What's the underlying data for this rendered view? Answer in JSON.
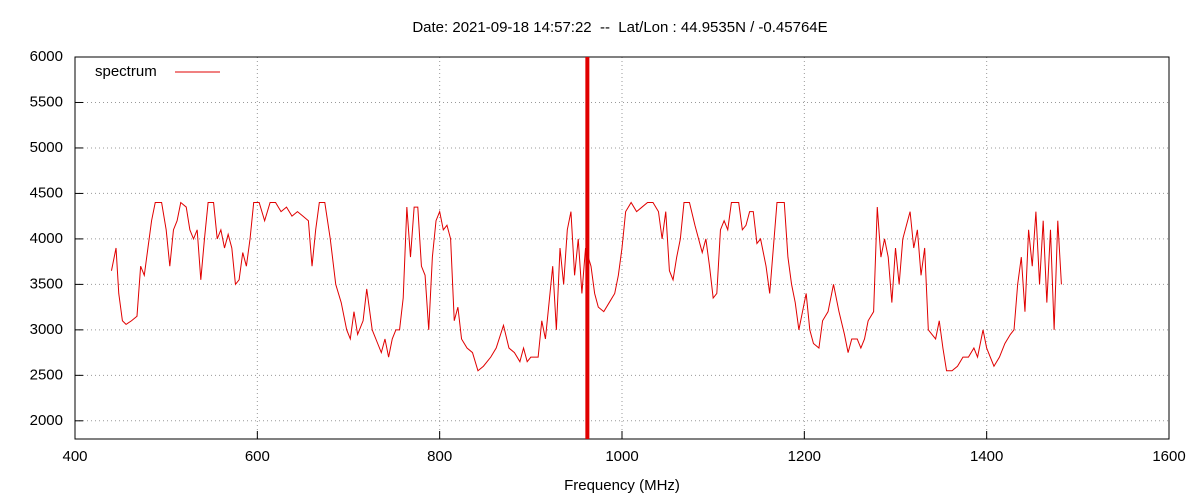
{
  "chart_data": {
    "type": "line",
    "title": "Date: 2021-09-18 14:57:22  --  Lat/Lon : 44.9535N / -0.45764E",
    "x_label": "Frequency (MHz)",
    "xlim": [
      400,
      1600
    ],
    "xticks": [
      400,
      600,
      800,
      1000,
      1200,
      1400,
      1600
    ],
    "ylim": [
      1800,
      6000
    ],
    "yticks": [
      2000,
      2500,
      3000,
      3500,
      4000,
      4500,
      5000,
      5500,
      6000
    ],
    "grid": true,
    "legend": "top-left",
    "marker_x": 962,
    "marker_color": "#e00000",
    "x": [
      440,
      445,
      448,
      452,
      456,
      462,
      468,
      472,
      476,
      480,
      484,
      488,
      495,
      500,
      504,
      508,
      512,
      516,
      522,
      526,
      530,
      534,
      538,
      542,
      546,
      552,
      556,
      560,
      564,
      568,
      572,
      576,
      580,
      584,
      588,
      592,
      596,
      602,
      608,
      614,
      620,
      626,
      632,
      638,
      644,
      650,
      656,
      660,
      664,
      668,
      674,
      680,
      686,
      692,
      698,
      702,
      706,
      710,
      716,
      720,
      726,
      732,
      736,
      740,
      744,
      748,
      752,
      756,
      760,
      764,
      768,
      772,
      776,
      780,
      784,
      788,
      792,
      796,
      800,
      804,
      808,
      812,
      816,
      820,
      824,
      830,
      836,
      842,
      848,
      852,
      856,
      862,
      870,
      876,
      882,
      888,
      892,
      896,
      900,
      904,
      908,
      912,
      916,
      920,
      924,
      928,
      932,
      936,
      940,
      944,
      948,
      952,
      956,
      960,
      966,
      970,
      974,
      980,
      986,
      992,
      996,
      1000,
      1004,
      1010,
      1016,
      1022,
      1028,
      1034,
      1040,
      1044,
      1048,
      1052,
      1056,
      1060,
      1064,
      1068,
      1074,
      1080,
      1084,
      1088,
      1092,
      1096,
      1100,
      1104,
      1108,
      1112,
      1116,
      1120,
      1128,
      1132,
      1136,
      1140,
      1144,
      1148,
      1152,
      1158,
      1162,
      1166,
      1170,
      1178,
      1182,
      1186,
      1190,
      1194,
      1198,
      1202,
      1206,
      1210,
      1216,
      1220,
      1226,
      1232,
      1238,
      1244,
      1248,
      1252,
      1258,
      1262,
      1266,
      1270,
      1276,
      1280,
      1284,
      1288,
      1292,
      1296,
      1300,
      1304,
      1308,
      1312,
      1316,
      1320,
      1324,
      1328,
      1332,
      1336,
      1340,
      1344,
      1348,
      1352,
      1356,
      1362,
      1368,
      1374,
      1380,
      1386,
      1390,
      1396,
      1400,
      1404,
      1408,
      1414,
      1420,
      1426,
      1430,
      1434,
      1438,
      1442,
      1446,
      1450,
      1454,
      1458,
      1462,
      1466,
      1470,
      1474,
      1478,
      1482
    ],
    "series": [
      {
        "name": "spectrum",
        "color": "#e00000",
        "values": [
          3650,
          3900,
          3400,
          3100,
          3060,
          3100,
          3150,
          3700,
          3600,
          3900,
          4200,
          4400,
          4400,
          4100,
          3700,
          4100,
          4200,
          4400,
          4350,
          4100,
          4000,
          4100,
          3550,
          4000,
          4400,
          4400,
          4000,
          4100,
          3900,
          4050,
          3900,
          3500,
          3550,
          3850,
          3700,
          4000,
          4400,
          4400,
          4200,
          4400,
          4400,
          4300,
          4350,
          4250,
          4300,
          4250,
          4200,
          3700,
          4100,
          4400,
          4400,
          4000,
          3500,
          3300,
          3000,
          2900,
          3200,
          2950,
          3100,
          3450,
          3000,
          2850,
          2750,
          2900,
          2700,
          2900,
          3000,
          3000,
          3350,
          4350,
          3800,
          4350,
          4350,
          3700,
          3600,
          3000,
          3800,
          4200,
          4300,
          4100,
          4150,
          4000,
          3100,
          3250,
          2900,
          2800,
          2750,
          2550,
          2600,
          2650,
          2700,
          2800,
          3050,
          2800,
          2750,
          2650,
          2800,
          2650,
          2700,
          2700,
          2700,
          3100,
          2900,
          3300,
          3700,
          3000,
          3900,
          3500,
          4100,
          4300,
          3600,
          4000,
          3400,
          3900,
          3700,
          3400,
          3250,
          3200,
          3300,
          3400,
          3600,
          3900,
          4300,
          4400,
          4300,
          4350,
          4400,
          4400,
          4300,
          4000,
          4300,
          3650,
          3550,
          3800,
          4000,
          4400,
          4400,
          4150,
          4000,
          3850,
          4000,
          3700,
          3350,
          3400,
          4100,
          4200,
          4100,
          4400,
          4400,
          4100,
          4150,
          4300,
          4300,
          3950,
          4000,
          3700,
          3400,
          3900,
          4400,
          4400,
          3800,
          3500,
          3300,
          3000,
          3200,
          3400,
          3000,
          2850,
          2800,
          3100,
          3200,
          3500,
          3200,
          2950,
          2750,
          2900,
          2900,
          2800,
          2900,
          3100,
          3200,
          4350,
          3800,
          4000,
          3800,
          3300,
          3900,
          3500,
          4000,
          4150,
          4300,
          3900,
          4100,
          3600,
          3900,
          3000,
          2950,
          2900,
          3100,
          2800,
          2550,
          2550,
          2600,
          2700,
          2700,
          2800,
          2700,
          3000,
          2800,
          2700,
          2600,
          2700,
          2850,
          2950,
          3000,
          3500,
          3800,
          3200,
          4100,
          3700,
          4300,
          3500,
          4200,
          3300,
          4100,
          3000,
          4200,
          3500
        ]
      }
    ]
  }
}
